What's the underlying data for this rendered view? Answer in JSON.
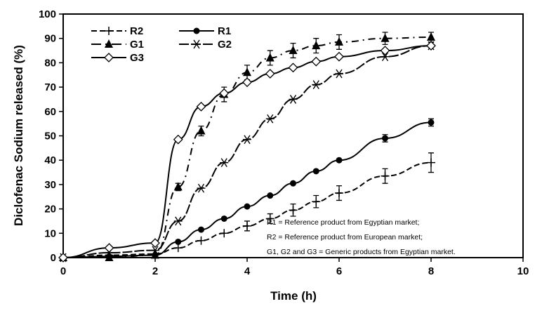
{
  "chart_data": {
    "type": "line",
    "title": "",
    "xlabel": "Time (h)",
    "ylabel": "Diclofenac Sodium released (%)",
    "xlim": [
      0,
      10
    ],
    "ylim": [
      0,
      100
    ],
    "xticks": [
      0,
      2,
      4,
      6,
      8,
      10
    ],
    "yticks": [
      0,
      10,
      20,
      30,
      40,
      50,
      60,
      70,
      80,
      90,
      100
    ],
    "legend_placement": "top-left",
    "x": [
      0,
      1,
      2,
      2.5,
      3,
      3.5,
      4,
      4.5,
      5,
      5.5,
      6,
      7,
      8
    ],
    "series": [
      {
        "name": "R2",
        "marker": "plus",
        "dash": "8,4",
        "values": [
          0,
          1,
          1.5,
          4,
          7,
          10,
          13,
          16,
          19.5,
          23,
          26.5,
          33.5,
          39
        ],
        "err": [
          0,
          0,
          0,
          0,
          0,
          0,
          2,
          2,
          2.5,
          2.5,
          3,
          3,
          4
        ]
      },
      {
        "name": "R1",
        "marker": "circle",
        "dash": "",
        "values": [
          0,
          0.5,
          1,
          6.5,
          11.5,
          16,
          21,
          25.5,
          30.5,
          35.5,
          40,
          49,
          55.5
        ],
        "err": [
          0,
          0,
          0,
          0,
          0,
          0,
          0,
          0,
          0,
          0,
          0,
          1.5,
          1.5
        ]
      },
      {
        "name": "G1",
        "marker": "triangle",
        "dash": "10,6,2,6",
        "values": [
          0,
          0,
          1,
          29,
          52,
          67,
          76,
          82,
          85,
          87,
          88.5,
          90,
          90.5
        ],
        "err": [
          0,
          0,
          0,
          1.5,
          2,
          3,
          3,
          3,
          3,
          3,
          3,
          2.5,
          2
        ]
      },
      {
        "name": "G2",
        "marker": "asterisk",
        "dash": "14,3",
        "values": [
          0,
          2,
          3,
          15,
          28.5,
          39,
          48.5,
          57,
          65,
          71,
          75.5,
          82.5,
          87
        ],
        "err": [
          0,
          0,
          0,
          0,
          0,
          0,
          0,
          0,
          0,
          0,
          0,
          0,
          0
        ]
      },
      {
        "name": "G3",
        "marker": "diamond",
        "dash": "",
        "values": [
          0,
          4,
          6,
          48.5,
          62,
          67.5,
          72,
          75.5,
          78,
          80.5,
          82.5,
          85,
          87
        ],
        "err": [
          0,
          0,
          0,
          0,
          0,
          0,
          0,
          0,
          0,
          0,
          0,
          0,
          0
        ]
      }
    ],
    "annotations": [
      "R1 = Reference product from Egyptian market;",
      "R2 = Reference product from European market;",
      "G1, G2 and G3 = Generic products from Egyptian market."
    ]
  }
}
